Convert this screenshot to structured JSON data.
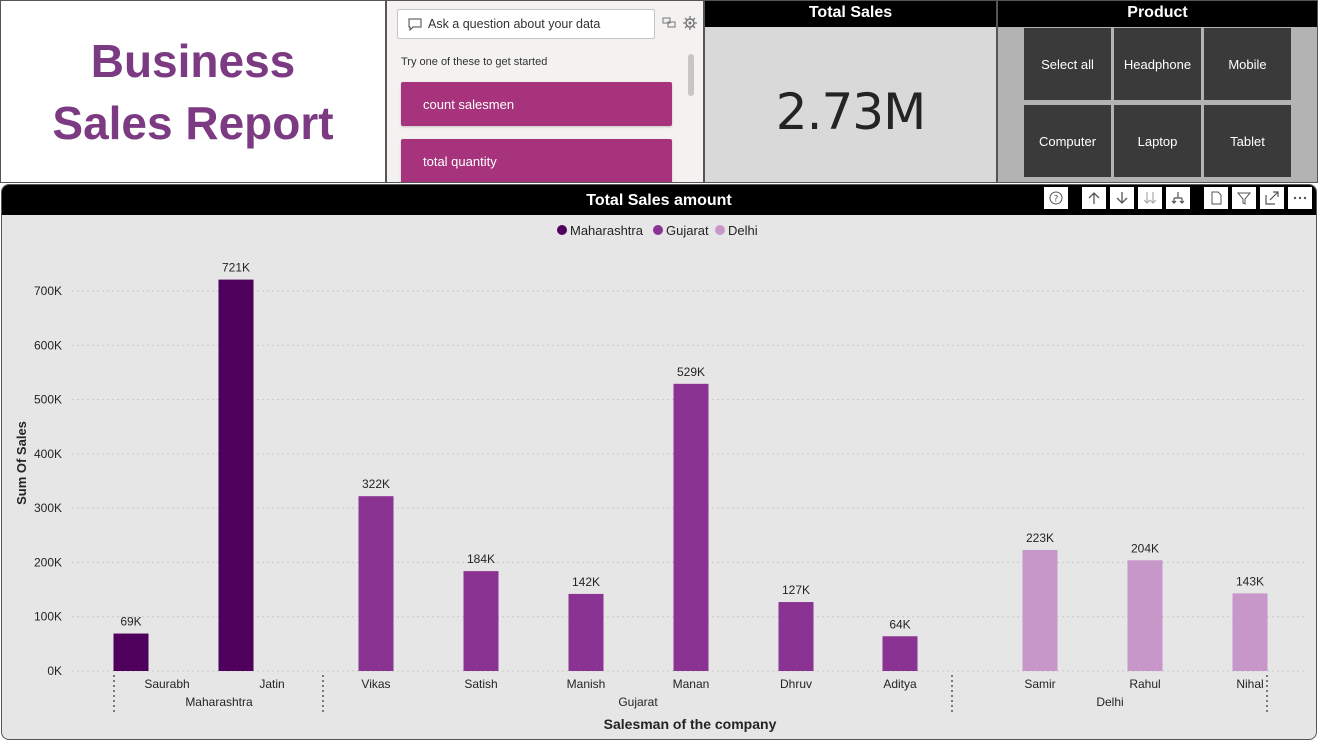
{
  "title": {
    "line1": "Business",
    "line2": "Sales Report"
  },
  "qa": {
    "placeholder": "Ask a question about your data",
    "hint": "Try one of these to get started",
    "suggestions": [
      "count salesmen",
      "total quantity"
    ]
  },
  "total_sales": {
    "header": "Total Sales",
    "value": "2.73M"
  },
  "product": {
    "header": "Product",
    "options": [
      "Select all",
      "Headphone",
      "Mobile",
      "Computer",
      "Laptop",
      "Tablet"
    ]
  },
  "colors": {
    "title": "#7b3a82",
    "suggestion": "#a6337c",
    "maharashtra": "#4f005c",
    "gujarat": "#8b3393",
    "delhi": "#c797c9"
  },
  "chart_data": {
    "type": "bar",
    "title": "Total Sales amount",
    "xlabel": "Salesman of the company",
    "ylabel": "Sum Of Sales",
    "ylim": [
      0,
      750000
    ],
    "yticks": [
      "0K",
      "100K",
      "200K",
      "300K",
      "400K",
      "500K",
      "600K",
      "700K"
    ],
    "ytick_values": [
      0,
      100000,
      200000,
      300000,
      400000,
      500000,
      600000,
      700000
    ],
    "legend": [
      "Maharashtra",
      "Gujarat",
      "Delhi"
    ],
    "legend_position": "top-center",
    "groups": [
      {
        "name": "Maharashtra",
        "color": "#4f005c",
        "salesmen": [
          "Saurabh",
          "Jatin"
        ],
        "values": [
          69000,
          721000
        ],
        "labels": [
          "69K",
          "721K"
        ]
      },
      {
        "name": "Gujarat",
        "color": "#8b3393",
        "salesmen": [
          "Vikas",
          "Satish",
          "Manish",
          "Manan",
          "Dhruv",
          "Aditya"
        ],
        "values": [
          322000,
          184000,
          142000,
          529000,
          127000,
          64000
        ],
        "labels": [
          "322K",
          "184K",
          "142K",
          "529K",
          "127K",
          "64K"
        ]
      },
      {
        "name": "Delhi",
        "color": "#c797c9",
        "salesmen": [
          "Samir",
          "Rahul",
          "Nihal"
        ],
        "values": [
          223000,
          204000,
          143000
        ],
        "labels": [
          "223K",
          "204K",
          "143K"
        ]
      }
    ],
    "grid": true
  }
}
